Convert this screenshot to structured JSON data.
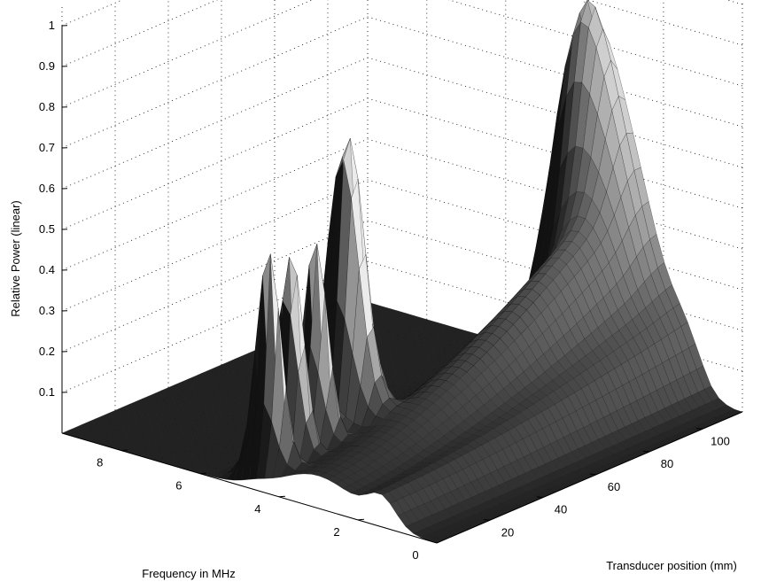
{
  "chart_data": {
    "type": "surface",
    "title": "",
    "xlabel": "Frequency in MHz",
    "ylabel": "Transducer position (mm)",
    "zlabel": "Relative Power (linear)",
    "xlim": [
      0,
      9.5
    ],
    "ylim": [
      0,
      115
    ],
    "zlim": [
      0,
      1
    ],
    "x_ticks": [
      "2",
      "4",
      "6",
      "8"
    ],
    "x_zero_label": "0",
    "y_ticks": [
      "20",
      "40",
      "60",
      "80",
      "100"
    ],
    "z_ticks": [
      "0.1",
      "0.2",
      "0.3",
      "0.4",
      "0.5",
      "0.6",
      "0.7",
      "0.8",
      "0.9",
      "1"
    ],
    "grid": true,
    "colormap": "grayscale",
    "peaks": [
      {
        "freq": 4.6,
        "position": 5,
        "power": 0.63
      },
      {
        "freq": 4.7,
        "position": 14,
        "power": 0.69
      },
      {
        "freq": 4.6,
        "position": 22,
        "power": 0.62
      },
      {
        "freq": 4.6,
        "position": 34,
        "power": 0.85
      },
      {
        "freq": 4.0,
        "position": 112,
        "power": 1.0
      },
      {
        "freq": 3.2,
        "position": 112,
        "power": 0.52
      }
    ]
  }
}
